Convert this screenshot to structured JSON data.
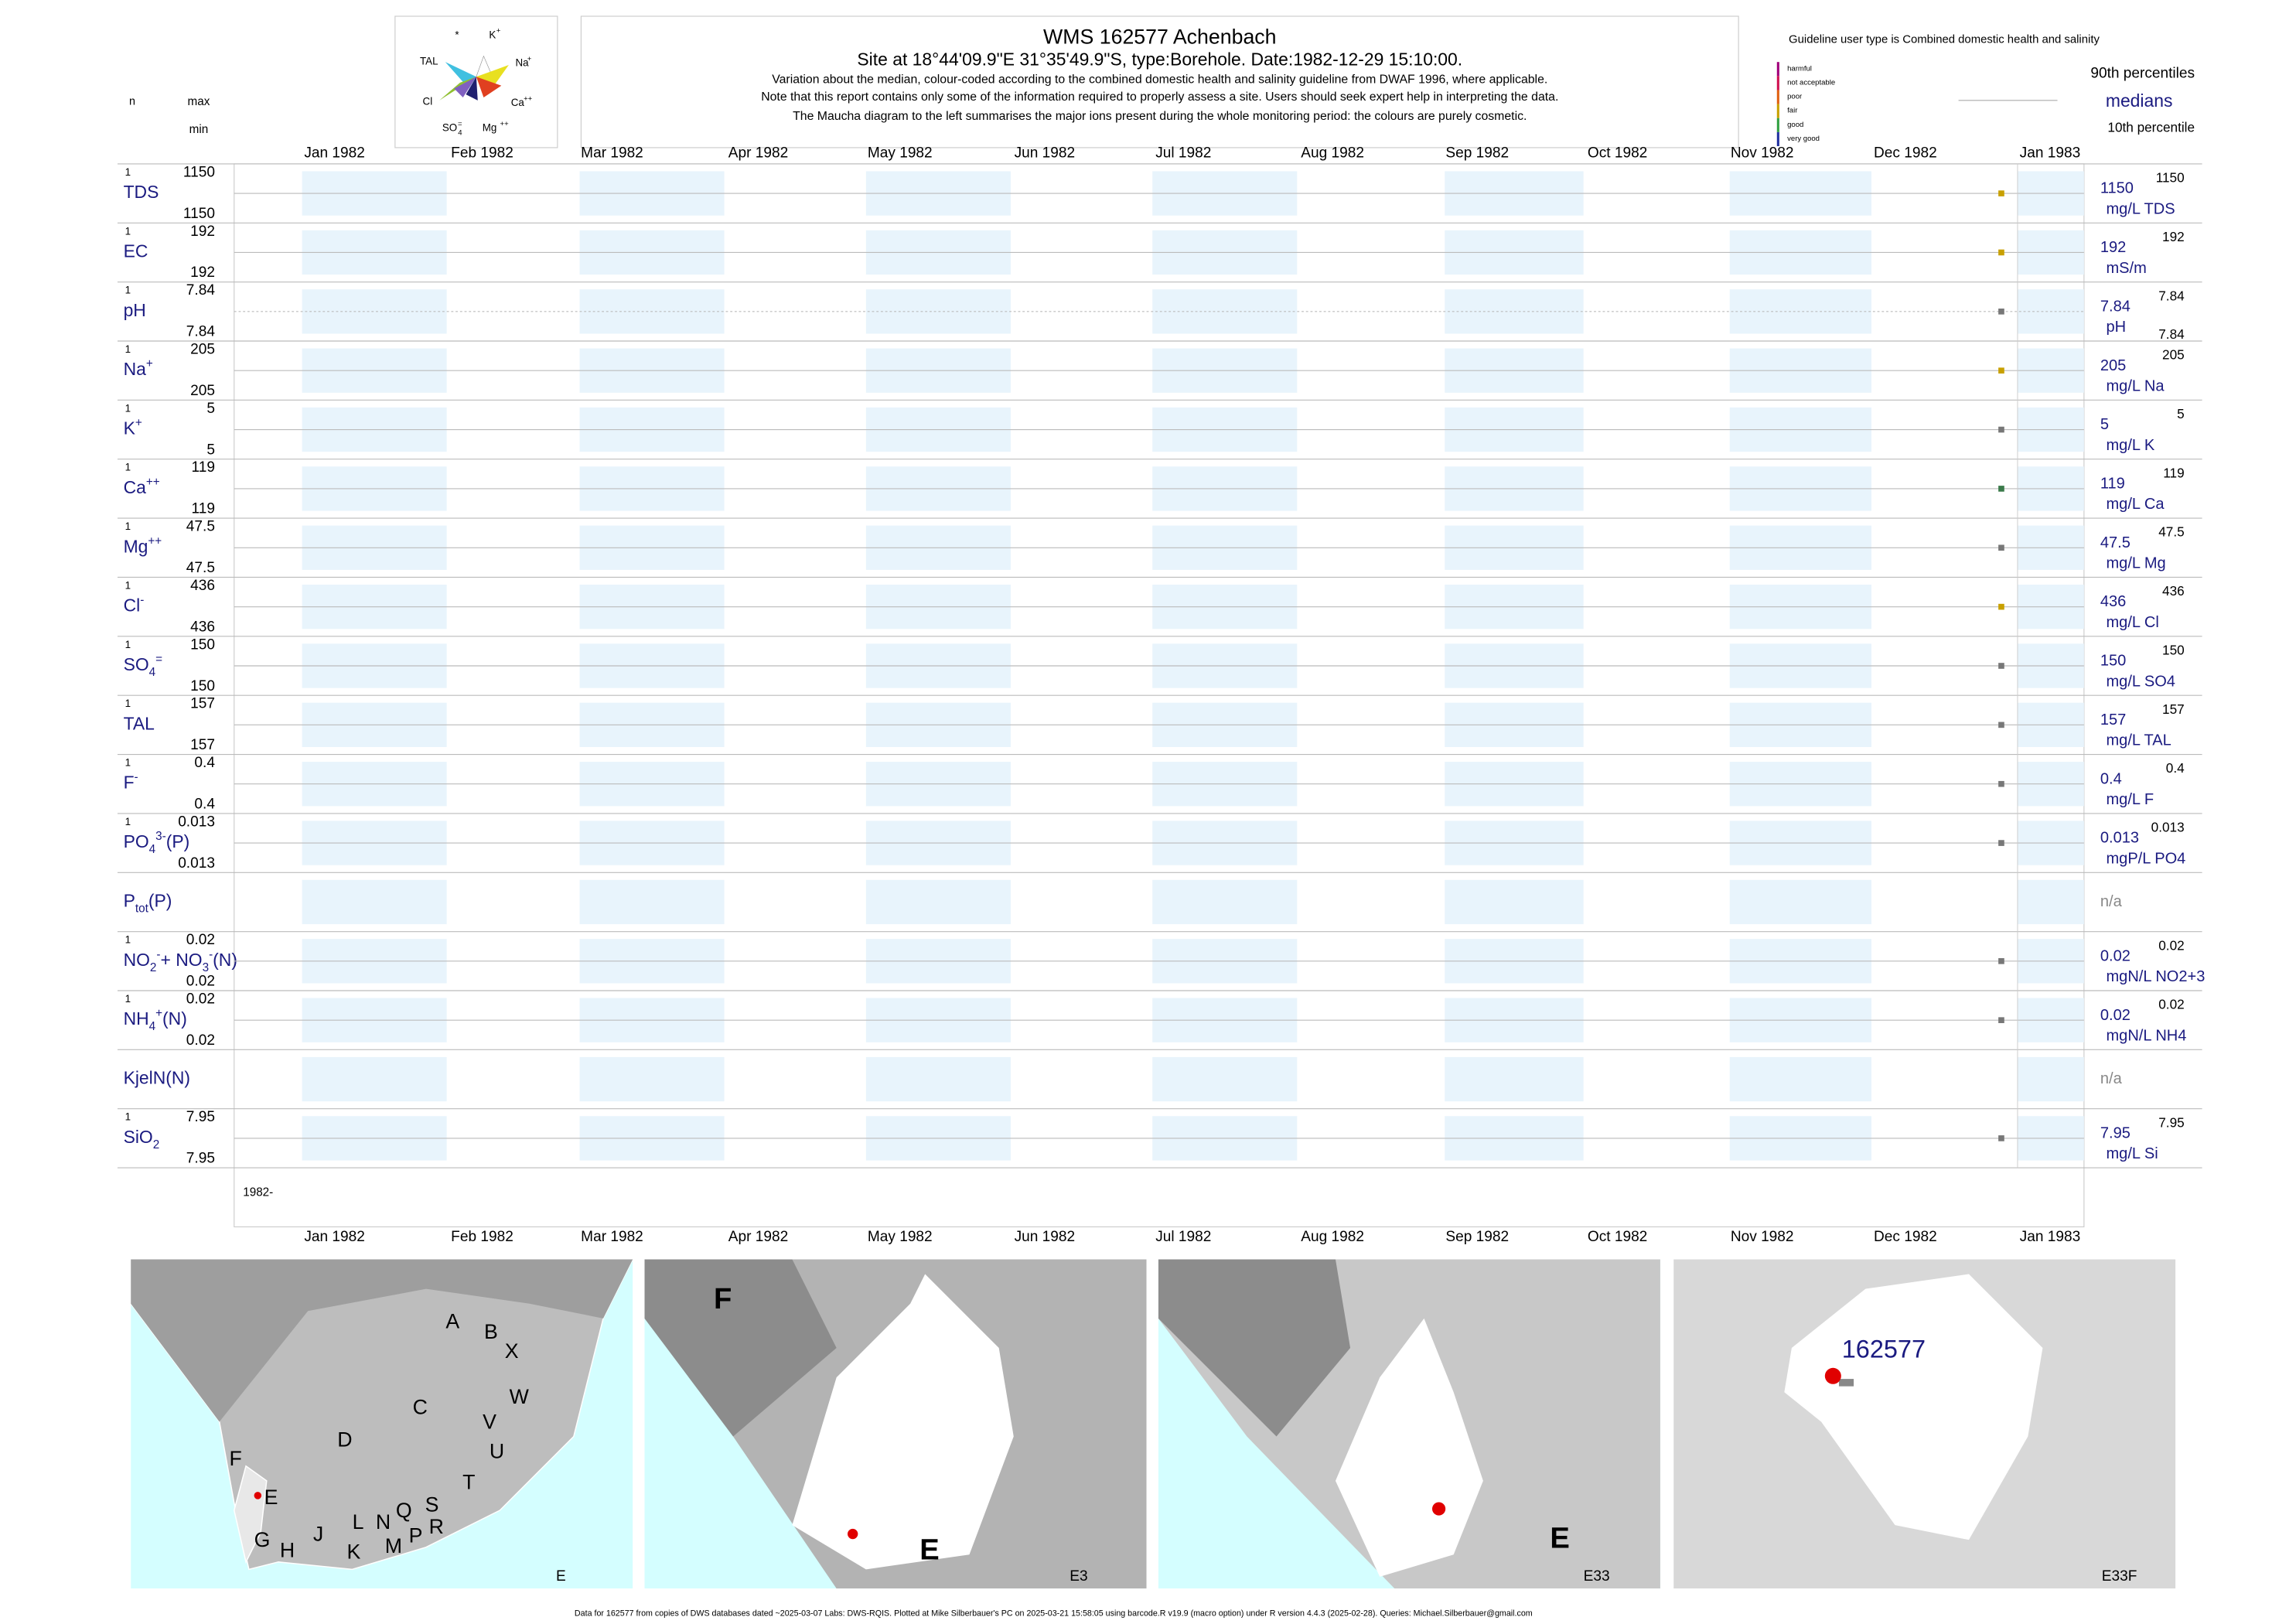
{
  "header": {
    "title": "WMS 162577  Achenbach",
    "site": "Site at 18°44'09.9\"E 31°35'49.9\"S, type:Borehole. Date:1982-12-29 15:10:00.",
    "notes": [
      "Variation about the median,  colour-coded according to the combined domestic health and salinity guideline from DWAF 1996, where applicable.",
      "Note that this report contains only some of the information required to properly assess a site. Users should seek expert help in interpreting the data.",
      "The Maucha diagram to the left summarises the major ions present during the whole monitoring period: the colours are purely cosmetic."
    ],
    "guideline": "Guideline user type is Combined domestic health and salinity",
    "levels": [
      "harmful",
      "not acceptable",
      "poor",
      "fair",
      "good",
      "very good"
    ],
    "p90_label": "90th percentiles",
    "median_label": "medians",
    "p10_label": "10th percentile",
    "n_label": "n",
    "max_label": "max",
    "min_label": "min"
  },
  "maucha": [
    "*",
    "K",
    "+",
    "TAL",
    "Na",
    "+",
    "Cl",
    "Ca",
    "++",
    "SO",
    "4",
    "=",
    "Mg",
    "++"
  ],
  "months": [
    "Jan 1982",
    "Feb 1982",
    "Mar 1982",
    "Apr 1982",
    "May 1982",
    "Jun 1982",
    "Jul 1982",
    "Aug 1982",
    "Sep 1982",
    "Oct 1982",
    "Nov 1982",
    "Dec 1982",
    "Jan 1983"
  ],
  "year_start": "1982-",
  "rows": [
    {
      "label": [
        {
          "text": "TDS"
        }
      ],
      "n": 1,
      "max": 1150,
      "min": 1150,
      "median": 1150,
      "unit": "mg/L TDS",
      "p90": 1150,
      "color": "#c8a000"
    },
    {
      "label": [
        {
          "text": "EC"
        }
      ],
      "n": 1,
      "max": 192,
      "min": 192,
      "median": 192,
      "unit": "mS/m",
      "p90": 192,
      "color": "#c8a000"
    },
    {
      "label": [
        {
          "text": "pH"
        }
      ],
      "n": 1,
      "max": 7.84,
      "min": 7.84,
      "median": 7.84,
      "unit": "pH",
      "p90": 7.84,
      "p10": 7.84,
      "color": "#777777"
    },
    {
      "label": [
        {
          "text": "Na"
        },
        {
          "text": "+",
          "pos": "super"
        }
      ],
      "n": 1,
      "max": 205,
      "min": 205,
      "median": 205,
      "unit": "mg/L Na",
      "p90": 205,
      "color": "#c8a000"
    },
    {
      "label": [
        {
          "text": "K"
        },
        {
          "text": "+",
          "pos": "super"
        }
      ],
      "n": 1,
      "max": 5,
      "min": 5,
      "median": 5,
      "unit": "mg/L K",
      "p90": 5,
      "color": "#777777"
    },
    {
      "label": [
        {
          "text": "Ca"
        },
        {
          "text": "++",
          "pos": "super"
        }
      ],
      "n": 1,
      "max": 119,
      "min": 119,
      "median": 119,
      "unit": "mg/L Ca",
      "p90": 119,
      "color": "#3a7a4a"
    },
    {
      "label": [
        {
          "text": "Mg"
        },
        {
          "text": "++",
          "pos": "super"
        }
      ],
      "n": 1,
      "max": 47.5,
      "min": 47.5,
      "median": 47.5,
      "unit": "mg/L Mg",
      "p90": 47.5,
      "color": "#777777"
    },
    {
      "label": [
        {
          "text": "Cl"
        },
        {
          "text": "-",
          "pos": "super"
        }
      ],
      "n": 1,
      "max": 436,
      "min": 436,
      "median": 436,
      "unit": "mg/L Cl",
      "p90": 436,
      "color": "#c8a000"
    },
    {
      "label": [
        {
          "text": "SO"
        },
        {
          "text": "4",
          "pos": "sub"
        },
        {
          "text": "=",
          "pos": "super"
        }
      ],
      "n": 1,
      "max": 150,
      "min": 150,
      "median": 150,
      "unit": "mg/L SO4",
      "p90": 150,
      "color": "#777777"
    },
    {
      "label": [
        {
          "text": "TAL"
        }
      ],
      "n": 1,
      "max": 157,
      "min": 157,
      "median": 157,
      "unit": "mg/L TAL",
      "p90": 157,
      "color": "#777777"
    },
    {
      "label": [
        {
          "text": "F"
        },
        {
          "text": "-",
          "pos": "super"
        }
      ],
      "n": 1,
      "max": 0.4,
      "min": 0.4,
      "median": 0.4,
      "unit": "mg/L F",
      "p90": 0.4,
      "color": "#777777"
    },
    {
      "label": [
        {
          "text": "PO"
        },
        {
          "text": "4",
          "pos": "sub"
        },
        {
          "text": "3-",
          "pos": "super"
        },
        {
          "text": "(P)"
        }
      ],
      "n": 1,
      "max": 0.013,
      "min": 0.013,
      "median": 0.013,
      "unit": "mgP/L PO4",
      "p90": 0.013,
      "color": "#777777"
    },
    {
      "label": [
        {
          "text": "P"
        },
        {
          "text": "tot",
          "pos": "sub"
        },
        {
          "text": "(P)"
        }
      ],
      "median": "n/a"
    },
    {
      "label": [
        {
          "text": "NO"
        },
        {
          "text": "2",
          "pos": "sub"
        },
        {
          "text": "-",
          "pos": "super"
        },
        {
          "text": "+ NO"
        },
        {
          "text": "3",
          "pos": "sub"
        },
        {
          "text": "-",
          "pos": "super"
        },
        {
          "text": "(N)"
        }
      ],
      "n": 1,
      "max": 0.02,
      "min": 0.02,
      "median": 0.02,
      "unit": "mgN/L NO2+3",
      "p90": 0.02,
      "color": "#777777"
    },
    {
      "label": [
        {
          "text": "NH"
        },
        {
          "text": "4",
          "pos": "sub"
        },
        {
          "text": "+",
          "pos": "super"
        },
        {
          "text": "(N)"
        }
      ],
      "n": 1,
      "max": 0.02,
      "min": 0.02,
      "median": 0.02,
      "unit": "mgN/L NH4",
      "p90": 0.02,
      "color": "#777777"
    },
    {
      "label": [
        {
          "text": "KjelN(N)"
        }
      ],
      "median": "n/a"
    },
    {
      "label": [
        {
          "text": "SiO"
        },
        {
          "text": "2",
          "pos": "sub"
        }
      ],
      "n": 1,
      "max": 7.95,
      "min": 7.95,
      "median": 7.95,
      "unit": "mg/L Si",
      "p90": 7.95,
      "color": "#777777"
    }
  ],
  "maps": [
    {
      "caption": "E",
      "labels": [
        "A",
        "B",
        "X",
        "C",
        "W",
        "D",
        "V",
        "U",
        "T",
        "F",
        "E",
        "G",
        "H",
        "J",
        "K",
        "L",
        "N",
        "M",
        "Q",
        "P",
        "S",
        "R"
      ]
    },
    {
      "caption": "E3",
      "labels": [
        "F",
        "E"
      ]
    },
    {
      "caption": "E33",
      "labels": [
        "E"
      ]
    },
    {
      "caption": "E33F",
      "labels": [
        "162577"
      ]
    }
  ],
  "footer": "Data for 162577 from copies of DWS databases dated ~2025-03-07 Labs: DWS-RQIS. Plotted at Mike Silberbauer's PC on 2025-03-21 15:58:05 using barcode.R v19.9 (macro option) under R version 4.4.3 (2025-02-28). Queries: Michael.Silberbauer@gmail.com"
}
